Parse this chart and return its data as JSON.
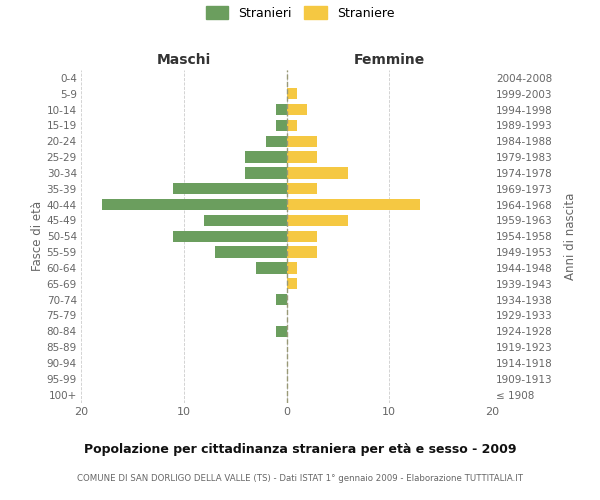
{
  "age_groups": [
    "100+",
    "95-99",
    "90-94",
    "85-89",
    "80-84",
    "75-79",
    "70-74",
    "65-69",
    "60-64",
    "55-59",
    "50-54",
    "45-49",
    "40-44",
    "35-39",
    "30-34",
    "25-29",
    "20-24",
    "15-19",
    "10-14",
    "5-9",
    "0-4"
  ],
  "birth_years": [
    "≤ 1908",
    "1909-1913",
    "1914-1918",
    "1919-1923",
    "1924-1928",
    "1929-1933",
    "1934-1938",
    "1939-1943",
    "1944-1948",
    "1949-1953",
    "1954-1958",
    "1959-1963",
    "1964-1968",
    "1969-1973",
    "1974-1978",
    "1979-1983",
    "1984-1988",
    "1989-1993",
    "1994-1998",
    "1999-2003",
    "2004-2008"
  ],
  "maschi": [
    0,
    0,
    0,
    0,
    1,
    0,
    1,
    0,
    3,
    7,
    11,
    8,
    18,
    11,
    4,
    4,
    2,
    1,
    1,
    0,
    0
  ],
  "femmine": [
    0,
    0,
    0,
    0,
    0,
    0,
    0,
    1,
    1,
    3,
    3,
    6,
    13,
    3,
    6,
    3,
    3,
    1,
    2,
    1,
    0
  ],
  "maschi_color": "#6b9e5e",
  "femmine_color": "#f5c842",
  "title": "Popolazione per cittadinanza straniera per età e sesso - 2009",
  "subtitle": "COMUNE DI SAN DORLIGO DELLA VALLE (TS) - Dati ISTAT 1° gennaio 2009 - Elaborazione TUTTITALIA.IT",
  "ylabel_left": "Fasce di età",
  "ylabel_right": "Anni di nascita",
  "header_maschi": "Maschi",
  "header_femmine": "Femmine",
  "legend_maschi": "Stranieri",
  "legend_femmine": "Straniere",
  "xlim": 20,
  "background_color": "#ffffff",
  "grid_color": "#cccccc"
}
